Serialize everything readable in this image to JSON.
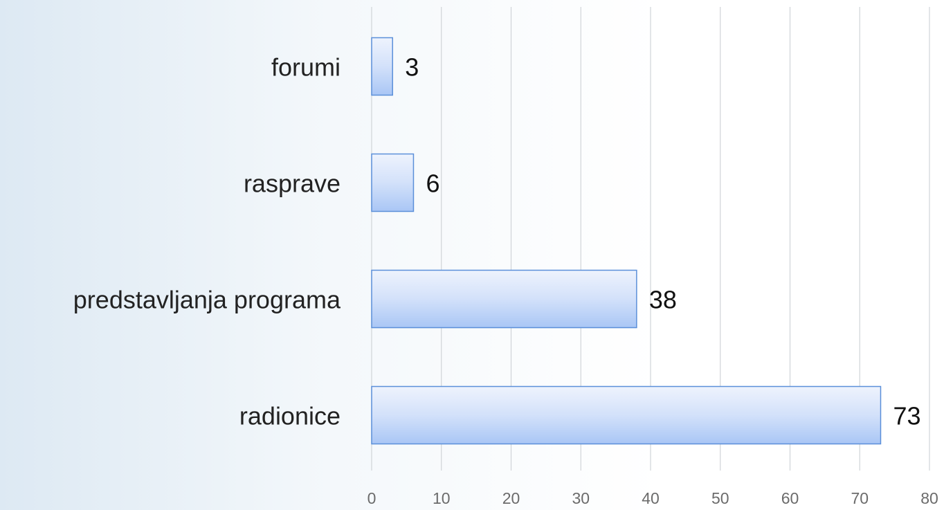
{
  "chart_data": {
    "type": "bar",
    "orientation": "horizontal",
    "categories": [
      "forumi",
      "rasprave",
      "predstavljanja programa",
      "radionice"
    ],
    "values": [
      3,
      6,
      38,
      73
    ],
    "color": "#a9c6f5",
    "xlim": [
      0,
      80
    ],
    "xticks": [
      0,
      10,
      20,
      30,
      40,
      50,
      60,
      70,
      80
    ],
    "grid": true
  }
}
